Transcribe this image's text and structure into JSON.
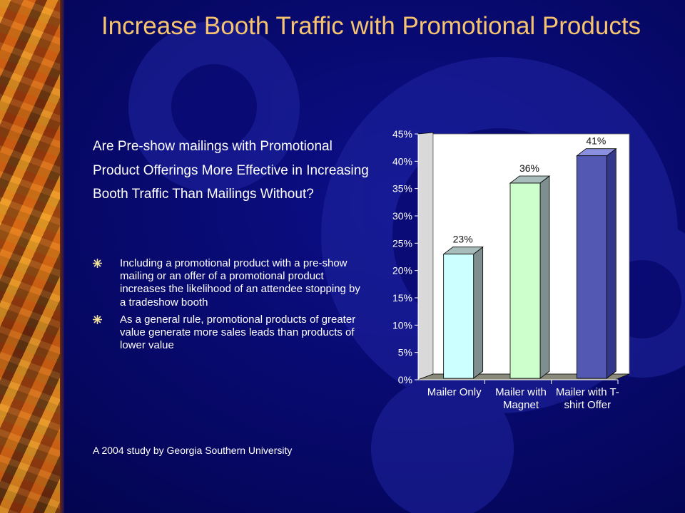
{
  "slide": {
    "title": "Increase Booth Traffic with Promotional Products",
    "question": "Are Pre-show mailings with Promotional Product Offerings More Effective in Increasing Booth Traffic Than Mailings Without?",
    "bullets": [
      "Including a promotional product with a pre-show mailing or an offer of a promotional product increases the likelihood of an attendee stopping by a tradeshow booth",
      "As a general rule, promotional products of greater value generate more sales leads than products of lower value"
    ],
    "source": "A 2004 study by Georgia Southern University",
    "colors": {
      "background": "#07076e",
      "title": "#f6c36f",
      "text": "#ffffff",
      "gear": "#2a2fa6"
    }
  },
  "chart_data": {
    "type": "bar",
    "categories": [
      "Mailer Only",
      "Mailer with Magnet",
      "Mailer with T-shirt Offer"
    ],
    "category_lines": [
      [
        "Mailer Only"
      ],
      [
        "Mailer with",
        "Magnet"
      ],
      [
        "Mailer with T-",
        "shirt Offer"
      ]
    ],
    "values": [
      23,
      36,
      41
    ],
    "data_labels": [
      "23%",
      "36%",
      "41%"
    ],
    "bar_colors": [
      "#ccffff",
      "#ccffcc",
      "#5358b3"
    ],
    "ylim": [
      0,
      45
    ],
    "yticks": [
      "0%",
      "5%",
      "10%",
      "15%",
      "20%",
      "25%",
      "30%",
      "35%",
      "40%",
      "45%"
    ],
    "plot_background": "#ffffff",
    "grid": false,
    "style": "3d"
  }
}
